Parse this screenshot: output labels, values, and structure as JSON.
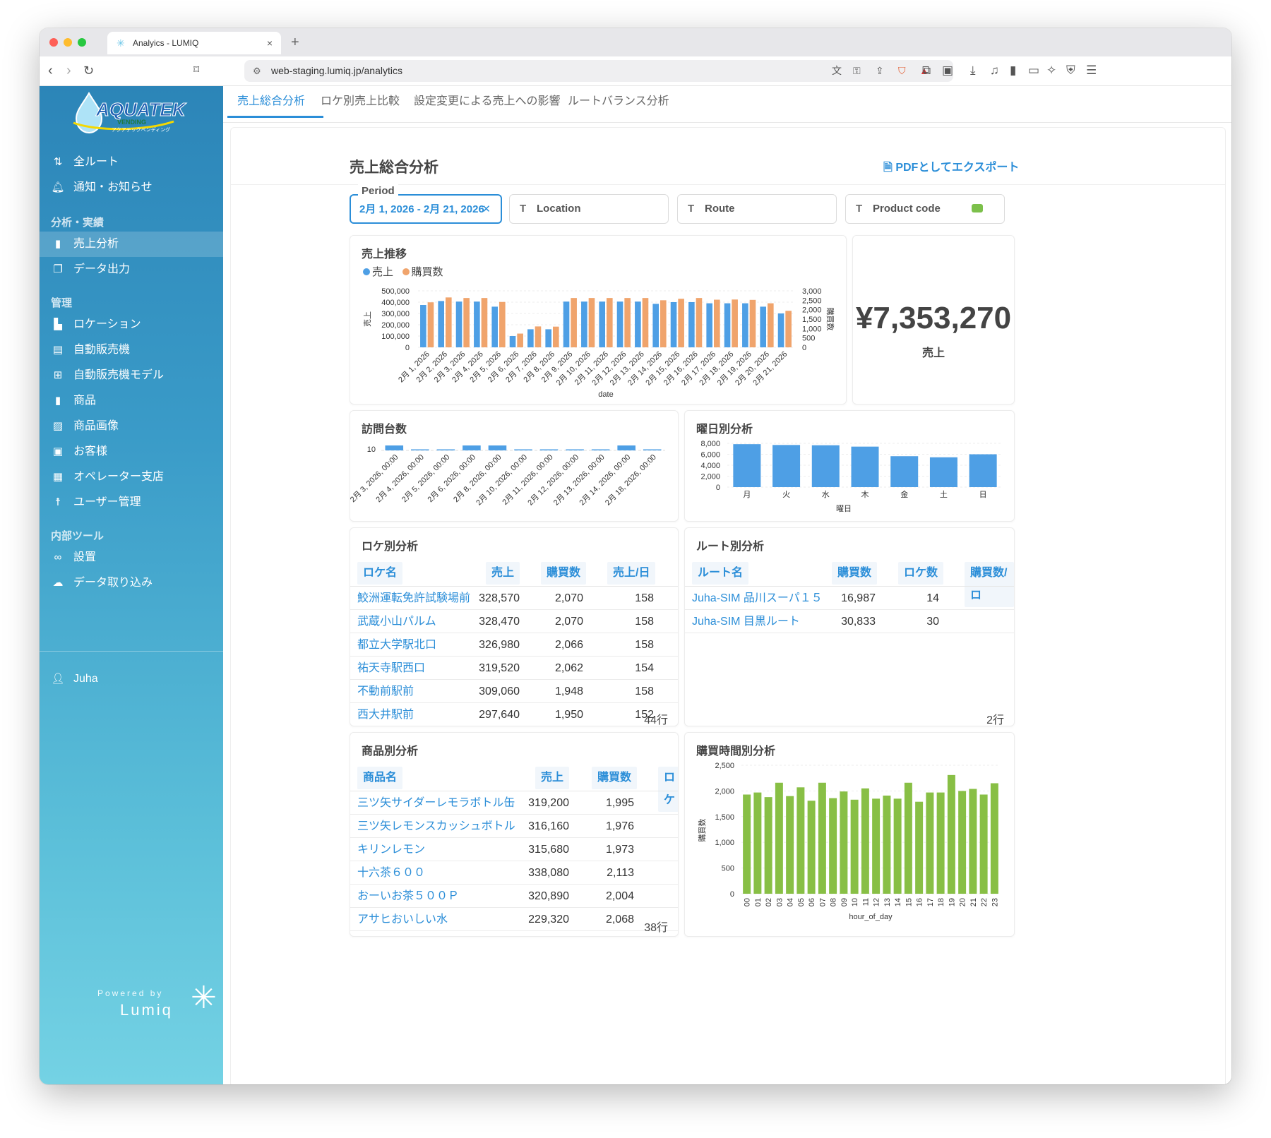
{
  "browser": {
    "tab_title": "Analyics - LUMIQ",
    "url": "web-staging.lumiq.jp/analytics",
    "tab_close": "×",
    "new_tab": "+"
  },
  "sidebar": {
    "logo_text": "AQUATEK",
    "logo_sub": "VENDING",
    "logo_kana": "アクアテックベンディング",
    "top_items": [
      {
        "label": "全ルート",
        "icon": "route-icon"
      },
      {
        "label": "通知・お知らせ",
        "icon": "bell-icon"
      }
    ],
    "section_analysis": "分析・実績",
    "analysis_items": [
      {
        "label": "売上分析",
        "icon": "bar-chart-icon"
      },
      {
        "label": "データ出力",
        "icon": "document-icon"
      }
    ],
    "section_admin": "管理",
    "admin_items": [
      {
        "label": "ロケーション",
        "icon": "building-icon"
      },
      {
        "label": "自動販売機",
        "icon": "vending-machine-icon"
      },
      {
        "label": "自動販売機モデル",
        "icon": "grid-icon"
      },
      {
        "label": "商品",
        "icon": "bottle-icon"
      },
      {
        "label": "商品画像",
        "icon": "image-icon"
      },
      {
        "label": "お客様",
        "icon": "briefcase-icon"
      },
      {
        "label": "オペレーター支店",
        "icon": "office-icon"
      },
      {
        "label": "ユーザー管理",
        "icon": "user-admin-icon"
      }
    ],
    "section_tools": "内部ツール",
    "tool_items": [
      {
        "label": "設置",
        "icon": "link-icon"
      },
      {
        "label": "データ取り込み",
        "icon": "cloud-upload-icon"
      }
    ],
    "user": "Juha",
    "powered_by": "Powered by",
    "brand": "Lumiq"
  },
  "tabs": [
    "売上総合分析",
    "ロケ別売上比較",
    "設定変更による売上への影響",
    "ルートバランス分析"
  ],
  "page": {
    "title": "売上総合分析",
    "export": "PDFとしてエクスポート"
  },
  "filters": {
    "period_label": "Period",
    "period_value": "2月 1, 2026 - 2月 21, 2026",
    "location": "Location",
    "route": "Route",
    "product_code": "Product code",
    "type_glyph": "T"
  },
  "colors": {
    "accent": "#2b8ed8",
    "sales_bar": "#4e9fe5",
    "purchase_bar": "#f0a46c",
    "hour_bar": "#88bf45"
  },
  "sales_trend": {
    "title": "売上推移",
    "legend_sales": "売上",
    "legend_purchases": "購買数",
    "y_left_label": "売上",
    "y_right_label": "購買数",
    "x_label": "date",
    "y_left_ticks": [
      "500,000",
      "400,000",
      "300,000",
      "200,000",
      "100,000",
      "0"
    ],
    "y_right_ticks": [
      "3,000",
      "2,500",
      "2,000",
      "1,500",
      "1,000",
      "500",
      "0"
    ]
  },
  "total": {
    "value": "¥7,353,270",
    "caption": "売上"
  },
  "visits": {
    "title": "訪問台数",
    "y_tick": "10"
  },
  "weekday": {
    "title": "曜日別分析",
    "x_label": "曜日",
    "y_ticks": [
      "8,000",
      "6,000",
      "4,000",
      "2,000",
      "0"
    ]
  },
  "location_table": {
    "title": "ロケ別分析",
    "headers": [
      "ロケ名",
      "売上",
      "購買数",
      "売上/日"
    ],
    "rows": [
      [
        "鮫洲運転免許試験場前",
        "328,570",
        "2,070",
        "158"
      ],
      [
        "武蔵小山パルム",
        "328,470",
        "2,070",
        "158"
      ],
      [
        "都立大学駅北口",
        "326,980",
        "2,066",
        "158"
      ],
      [
        "祐天寺駅西口",
        "319,520",
        "2,062",
        "154"
      ],
      [
        "不動前駅前",
        "309,060",
        "1,948",
        "158"
      ],
      [
        "西大井駅前",
        "297,640",
        "1,950",
        "152"
      ]
    ],
    "row_count": "44行"
  },
  "route_table": {
    "title": "ルート別分析",
    "headers": [
      "ルート名",
      "購買数",
      "ロケ数",
      "購買数/ロ"
    ],
    "rows": [
      [
        "Juha-SIM 品川スーパ１５",
        "16,987",
        "14"
      ],
      [
        "Juha-SIM 目黒ルート",
        "30,833",
        "30"
      ]
    ],
    "row_count": "2行"
  },
  "product_table": {
    "title": "商品別分析",
    "headers": [
      "商品名",
      "売上",
      "購買数",
      "ロケ"
    ],
    "rows": [
      [
        "三ツ矢サイダーレモラボトル缶",
        "319,200",
        "1,995"
      ],
      [
        "三ツ矢レモンスカッシュボトル",
        "316,160",
        "1,976"
      ],
      [
        "キリンレモン",
        "315,680",
        "1,973"
      ],
      [
        "十六茶６００",
        "338,080",
        "2,113"
      ],
      [
        "おーいお茶５００Ｐ",
        "320,890",
        "2,004"
      ],
      [
        "アサヒおいしい水",
        "229,320",
        "2,068"
      ]
    ],
    "row_count": "38行"
  },
  "hourly": {
    "title": "購買時間別分析",
    "y_label": "購買数",
    "x_label": "hour_of_day",
    "y_ticks": [
      "2,500",
      "2,000",
      "1,500",
      "1,000",
      "500",
      "0"
    ]
  },
  "chart_data": [
    {
      "type": "bar",
      "title": "売上推移",
      "xlabel": "date",
      "ylabel": "売上",
      "y2label": "購買数",
      "categories": [
        "2月 1, 2026",
        "2月 2, 2026",
        "2月 3, 2026",
        "2月 4, 2026",
        "2月 5, 2026",
        "2月 6, 2026",
        "2月 7, 2026",
        "2月 8, 2026",
        "2月 9, 2026",
        "2月 10, 2026",
        "2月 11, 2026",
        "2月 12, 2026",
        "2月 13, 2026",
        "2月 14, 2026",
        "2月 15, 2026",
        "2月 16, 2026",
        "2月 17, 2026",
        "2月 18, 2026",
        "2月 19, 2026",
        "2月 20, 2026",
        "2月 21, 2026"
      ],
      "series": [
        {
          "name": "売上",
          "axis": "left",
          "values": [
            375000,
            410000,
            405000,
            405000,
            360000,
            100000,
            160000,
            160000,
            405000,
            405000,
            405000,
            405000,
            405000,
            385000,
            400000,
            400000,
            390000,
            390000,
            390000,
            360000,
            300000
          ]
        },
        {
          "name": "購買数",
          "axis": "right",
          "values": [
            2390,
            2650,
            2620,
            2620,
            2410,
            730,
            1110,
            1100,
            2620,
            2620,
            2620,
            2620,
            2620,
            2500,
            2580,
            2620,
            2530,
            2540,
            2520,
            2340,
            1940
          ]
        }
      ],
      "ylim": [
        0,
        500000
      ],
      "y2lim": [
        0,
        3000
      ],
      "legend": "top-left"
    },
    {
      "type": "bar",
      "title": "訪問台数",
      "categories": [
        "2月 3, 2026, 00:00",
        "2月 4, 2026, 00:00",
        "2月 5, 2026, 00:00",
        "2月 6, 2026, 00:00",
        "2月 8, 2026, 00:00",
        "2月 10, 2026, 00:00",
        "2月 11, 2026, 00:00",
        "2月 12, 2026, 00:00",
        "2月 13, 2026, 00:00",
        "2月 14, 2026, 00:00",
        "2月 18, 2026, 00:00"
      ],
      "values": [
        10,
        1,
        1,
        10,
        10,
        1,
        1,
        1,
        1,
        10,
        1
      ],
      "ylim": [
        0,
        10
      ]
    },
    {
      "type": "bar",
      "title": "曜日別分析",
      "xlabel": "曜日",
      "categories": [
        "月",
        "火",
        "水",
        "木",
        "金",
        "土",
        "日"
      ],
      "values": [
        7850,
        7700,
        7650,
        7400,
        5650,
        5450,
        6000
      ],
      "ylim": [
        0,
        8000
      ]
    },
    {
      "type": "bar",
      "title": "購買時間別分析",
      "xlabel": "hour_of_day",
      "ylabel": "購買数",
      "categories": [
        "00",
        "01",
        "02",
        "03",
        "04",
        "05",
        "06",
        "07",
        "08",
        "09",
        "10",
        "11",
        "12",
        "13",
        "14",
        "15",
        "16",
        "17",
        "18",
        "19",
        "20",
        "21",
        "22",
        "23"
      ],
      "values": [
        1930,
        1970,
        1880,
        2160,
        1900,
        2070,
        1810,
        2160,
        1860,
        1990,
        1830,
        2050,
        1850,
        1910,
        1850,
        2160,
        1790,
        1970,
        1970,
        2310,
        2000,
        2040,
        1930,
        2150
      ],
      "ylim": [
        0,
        2500
      ]
    }
  ]
}
